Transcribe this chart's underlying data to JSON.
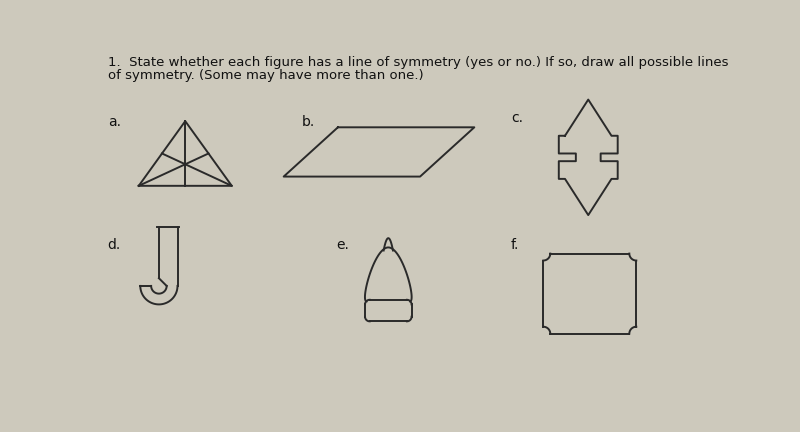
{
  "title_line1": "1.  State whether each figure has a line of symmetry (yes or no.) If so, draw all possible lines",
  "title_line2": "of symmetry. (Some may have more than one.)",
  "title_fontsize": 9.5,
  "bg_color": "#cdc9bc",
  "labels": [
    "a.",
    "b.",
    "c.",
    "d.",
    "e.",
    "f."
  ],
  "label_fontsize": 10,
  "line_color": "#2a2a2a",
  "lw": 1.4
}
